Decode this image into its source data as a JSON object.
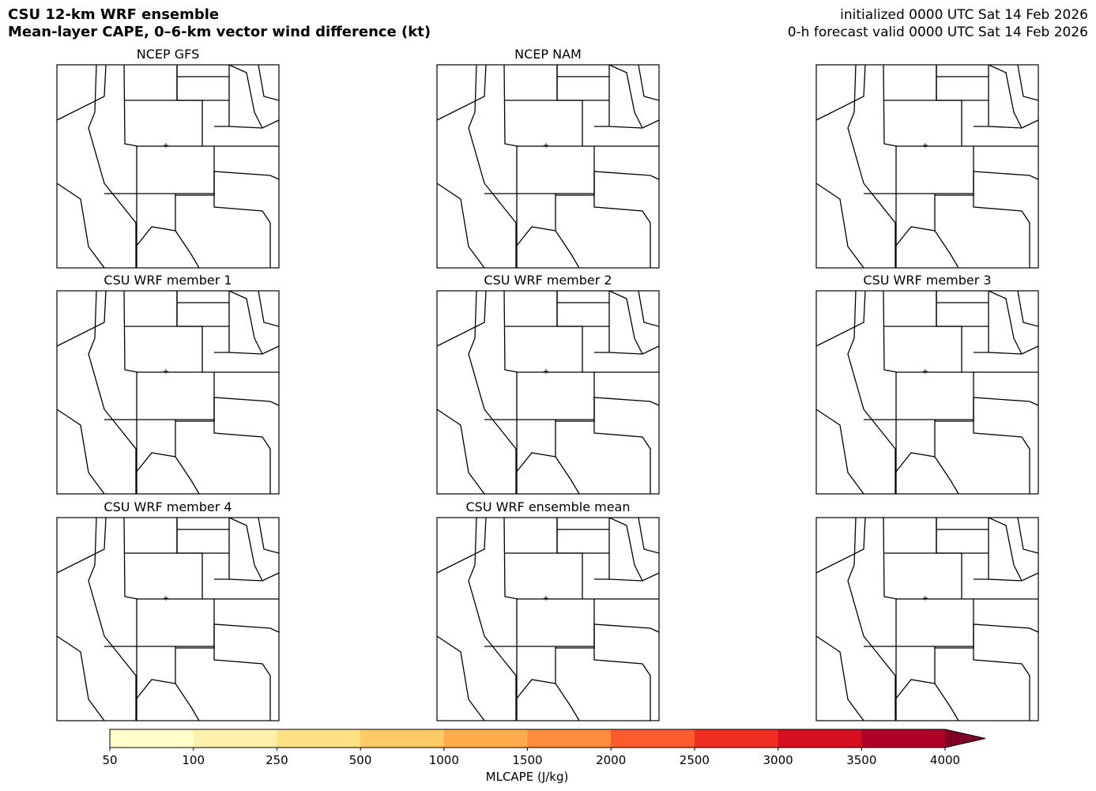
{
  "header": {
    "title": "CSU 12-km WRF ensemble",
    "subtitle": "Mean-layer CAPE, 0–6-km vector wind difference (kt)",
    "init": "initialized 0000 UTC Sat 14 Feb 2026",
    "valid": "0-h forecast valid 0000 UTC Sat 14 Feb 2026"
  },
  "panels": [
    {
      "title": "NCEP GFS"
    },
    {
      "title": "NCEP NAM"
    },
    {
      "title": "CSU WRF member 1"
    },
    {
      "title": "CSU WRF member 2"
    },
    {
      "title": "CSU WRF member 3"
    },
    {
      "title": "CSU WRF member 4"
    },
    {
      "title": "CSU WRF ensemble mean"
    }
  ],
  "colorbar": {
    "label": "MLCAPE (J/kg)",
    "ticks": [
      50,
      100,
      250,
      500,
      1000,
      1500,
      2000,
      2500,
      3000,
      3500,
      4000
    ],
    "colors": [
      "#ffffcc",
      "#fff1a9",
      "#fee187",
      "#feca66",
      "#feab49",
      "#fd8c3c",
      "#fc5b2e",
      "#ed2e21",
      "#d41020",
      "#b00026"
    ],
    "extend_color": "#800026"
  }
}
